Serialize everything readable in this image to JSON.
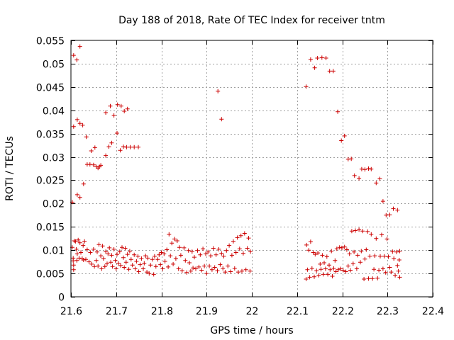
{
  "chart_data": {
    "type": "scatter",
    "title": "Day 188 of 2018, Rate Of TEC Index for receiver tntm",
    "xlabel": "GPS time / hours",
    "ylabel": "ROTI / TECUs",
    "xlim": [
      21.6,
      22.4
    ],
    "ylim": [
      0,
      0.055
    ],
    "x_ticks": [
      21.6,
      21.7,
      21.8,
      21.9,
      22.0,
      22.1,
      22.2,
      22.3,
      22.4
    ],
    "x_tick_labels": [
      "21.6",
      "21.7",
      "21.8",
      "21.9",
      "22",
      "22.1",
      "22.2",
      "22.3",
      "22.4"
    ],
    "y_ticks": [
      0,
      0.005,
      0.01,
      0.015,
      0.02,
      0.025,
      0.03,
      0.035,
      0.04,
      0.045,
      0.05,
      0.055
    ],
    "y_tick_labels": [
      "0",
      "0.005",
      "0.01",
      "0.015",
      "0.02",
      "0.025",
      "0.03",
      "0.035",
      "0.04",
      "0.045",
      "0.05",
      "0.055"
    ],
    "grid": true,
    "marker": "+",
    "color": "#cc0000",
    "points": [
      [
        21.603,
        0.0203
      ],
      [
        21.606,
        0.0365
      ],
      [
        21.606,
        0.0518
      ],
      [
        21.613,
        0.0508
      ],
      [
        21.614,
        0.038
      ],
      [
        21.614,
        0.0219
      ],
      [
        21.62,
        0.0372
      ],
      [
        21.62,
        0.0213
      ],
      [
        21.62,
        0.0537
      ],
      [
        21.626,
        0.0368
      ],
      [
        21.628,
        0.0242
      ],
      [
        21.634,
        0.0343
      ],
      [
        21.636,
        0.0284
      ],
      [
        21.642,
        0.0284
      ],
      [
        21.645,
        0.0313
      ],
      [
        21.65,
        0.0283
      ],
      [
        21.653,
        0.032
      ],
      [
        21.656,
        0.0279
      ],
      [
        21.66,
        0.0276
      ],
      [
        21.663,
        0.0279
      ],
      [
        21.666,
        0.0282
      ],
      [
        21.677,
        0.0303
      ],
      [
        21.677,
        0.0395
      ],
      [
        21.684,
        0.0322
      ],
      [
        21.687,
        0.0409
      ],
      [
        21.69,
        0.033
      ],
      [
        21.695,
        0.0389
      ],
      [
        21.702,
        0.0351
      ],
      [
        21.703,
        0.0412
      ],
      [
        21.709,
        0.0314
      ],
      [
        21.711,
        0.0409
      ],
      [
        21.716,
        0.0322
      ],
      [
        21.718,
        0.0398
      ],
      [
        21.723,
        0.0321
      ],
      [
        21.725,
        0.0403
      ],
      [
        21.731,
        0.0321
      ],
      [
        21.74,
        0.0321
      ],
      [
        21.749,
        0.0321
      ],
      [
        21.925,
        0.0441
      ],
      [
        21.933,
        0.0381
      ],
      [
        22.12,
        0.0451
      ],
      [
        22.13,
        0.0509
      ],
      [
        22.139,
        0.0491
      ],
      [
        22.145,
        0.0512
      ],
      [
        22.155,
        0.0513
      ],
      [
        22.164,
        0.0512
      ],
      [
        22.172,
        0.0484
      ],
      [
        22.18,
        0.0484
      ],
      [
        22.19,
        0.0397
      ],
      [
        22.198,
        0.0335
      ],
      [
        22.205,
        0.0345
      ],
      [
        22.213,
        0.0295
      ],
      [
        22.22,
        0.0296
      ],
      [
        22.227,
        0.026
      ],
      [
        22.237,
        0.0254
      ],
      [
        22.243,
        0.0274
      ],
      [
        22.25,
        0.0273
      ],
      [
        22.258,
        0.0275
      ],
      [
        22.264,
        0.0274
      ],
      [
        22.275,
        0.0244
      ],
      [
        22.283,
        0.0253
      ],
      [
        22.29,
        0.0205
      ],
      [
        22.297,
        0.0175
      ],
      [
        22.305,
        0.0176
      ],
      [
        22.313,
        0.0189
      ],
      [
        22.322,
        0.0186
      ],
      [
        21.603,
        0.0106
      ],
      [
        21.605,
        0.0083
      ],
      [
        21.605,
        0.0077
      ],
      [
        21.606,
        0.0058
      ],
      [
        21.606,
        0.0068
      ],
      [
        21.607,
        0.012
      ],
      [
        21.61,
        0.0119
      ],
      [
        21.612,
        0.0102
      ],
      [
        21.613,
        0.0078
      ],
      [
        21.614,
        0.0092
      ],
      [
        21.616,
        0.0122
      ],
      [
        21.618,
        0.0083
      ],
      [
        21.62,
        0.0116
      ],
      [
        21.622,
        0.0095
      ],
      [
        21.625,
        0.0082
      ],
      [
        21.627,
        0.011
      ],
      [
        21.628,
        0.0079
      ],
      [
        21.63,
        0.0119
      ],
      [
        21.633,
        0.008
      ],
      [
        21.636,
        0.0101
      ],
      [
        21.64,
        0.0075
      ],
      [
        21.643,
        0.0095
      ],
      [
        21.646,
        0.007
      ],
      [
        21.65,
        0.0102
      ],
      [
        21.652,
        0.0065
      ],
      [
        21.656,
        0.0078
      ],
      [
        21.658,
        0.0096
      ],
      [
        21.66,
        0.0066
      ],
      [
        21.662,
        0.0112
      ],
      [
        21.666,
        0.0088
      ],
      [
        21.668,
        0.006
      ],
      [
        21.67,
        0.0109
      ],
      [
        21.672,
        0.0082
      ],
      [
        21.675,
        0.0065
      ],
      [
        21.677,
        0.0097
      ],
      [
        21.68,
        0.0071
      ],
      [
        21.682,
        0.0092
      ],
      [
        21.685,
        0.0105
      ],
      [
        21.688,
        0.0074
      ],
      [
        21.69,
        0.0089
      ],
      [
        21.692,
        0.0065
      ],
      [
        21.695,
        0.0102
      ],
      [
        21.698,
        0.0078
      ],
      [
        21.7,
        0.006
      ],
      [
        21.702,
        0.0091
      ],
      [
        21.705,
        0.0072
      ],
      [
        21.708,
        0.0097
      ],
      [
        21.71,
        0.0067
      ],
      [
        21.713,
        0.0106
      ],
      [
        21.716,
        0.0084
      ],
      [
        21.718,
        0.0063
      ],
      [
        21.72,
        0.0104
      ],
      [
        21.722,
        0.0074
      ],
      [
        21.725,
        0.0091
      ],
      [
        21.728,
        0.0059
      ],
      [
        21.73,
        0.0098
      ],
      [
        21.733,
        0.008
      ],
      [
        21.736,
        0.0068
      ],
      [
        21.74,
        0.009
      ],
      [
        21.742,
        0.006
      ],
      [
        21.745,
        0.0076
      ],
      [
        21.748,
        0.0087
      ],
      [
        21.75,
        0.0054
      ],
      [
        21.753,
        0.0069
      ],
      [
        21.756,
        0.0082
      ],
      [
        21.76,
        0.006
      ],
      [
        21.762,
        0.0072
      ],
      [
        21.765,
        0.0088
      ],
      [
        21.768,
        0.0053
      ],
      [
        21.77,
        0.0083
      ],
      [
        21.773,
        0.005
      ],
      [
        21.776,
        0.0068
      ],
      [
        21.78,
        0.008
      ],
      [
        21.783,
        0.0048
      ],
      [
        21.785,
        0.0087
      ],
      [
        21.788,
        0.0065
      ],
      [
        21.792,
        0.008
      ],
      [
        21.795,
        0.009
      ],
      [
        21.798,
        0.0069
      ],
      [
        21.8,
        0.0095
      ],
      [
        21.803,
        0.006
      ],
      [
        21.806,
        0.0092
      ],
      [
        21.808,
        0.0076
      ],
      [
        21.812,
        0.0101
      ],
      [
        21.815,
        0.0064
      ],
      [
        21.817,
        0.0134
      ],
      [
        21.82,
        0.0088
      ],
      [
        21.823,
        0.0115
      ],
      [
        21.826,
        0.007
      ],
      [
        21.829,
        0.0124
      ],
      [
        21.832,
        0.0082
      ],
      [
        21.835,
        0.012
      ],
      [
        21.838,
        0.006
      ],
      [
        21.84,
        0.0106
      ],
      [
        21.843,
        0.0089
      ],
      [
        21.846,
        0.0056
      ],
      [
        21.85,
        0.0105
      ],
      [
        21.853,
        0.0078
      ],
      [
        21.856,
        0.0052
      ],
      [
        21.86,
        0.0099
      ],
      [
        21.862,
        0.0073
      ],
      [
        21.865,
        0.0055
      ],
      [
        21.868,
        0.0097
      ],
      [
        21.87,
        0.0062
      ],
      [
        21.873,
        0.0085
      ],
      [
        21.876,
        0.006
      ],
      [
        21.88,
        0.0099
      ],
      [
        21.883,
        0.0064
      ],
      [
        21.886,
        0.009
      ],
      [
        21.889,
        0.0057
      ],
      [
        21.892,
        0.0103
      ],
      [
        21.895,
        0.0066
      ],
      [
        21.898,
        0.0092
      ],
      [
        21.9,
        0.005
      ],
      [
        21.903,
        0.0096
      ],
      [
        21.906,
        0.0066
      ],
      [
        21.909,
        0.0088
      ],
      [
        21.912,
        0.0058
      ],
      [
        21.915,
        0.0104
      ],
      [
        21.918,
        0.0063
      ],
      [
        21.921,
        0.009
      ],
      [
        21.924,
        0.0056
      ],
      [
        21.927,
        0.0102
      ],
      [
        21.93,
        0.0069
      ],
      [
        21.933,
        0.0093
      ],
      [
        21.936,
        0.0061
      ],
      [
        21.938,
        0.0087
      ],
      [
        21.941,
        0.0053
      ],
      [
        21.944,
        0.0099
      ],
      [
        21.947,
        0.0066
      ],
      [
        21.95,
        0.011
      ],
      [
        21.953,
        0.0054
      ],
      [
        21.956,
        0.0089
      ],
      [
        21.959,
        0.0119
      ],
      [
        21.962,
        0.0061
      ],
      [
        21.965,
        0.0095
      ],
      [
        21.968,
        0.0127
      ],
      [
        21.97,
        0.0053
      ],
      [
        21.973,
        0.0103
      ],
      [
        21.976,
        0.0131
      ],
      [
        21.978,
        0.0055
      ],
      [
        21.981,
        0.0093
      ],
      [
        21.984,
        0.0136
      ],
      [
        21.987,
        0.0058
      ],
      [
        21.99,
        0.0104
      ],
      [
        21.993,
        0.0126
      ],
      [
        21.996,
        0.0055
      ],
      [
        21.997,
        0.0097
      ],
      [
        22.12,
        0.0038
      ],
      [
        22.121,
        0.0111
      ],
      [
        22.123,
        0.0058
      ],
      [
        22.126,
        0.01
      ],
      [
        22.128,
        0.0042
      ],
      [
        22.13,
        0.0118
      ],
      [
        22.133,
        0.0061
      ],
      [
        22.136,
        0.0095
      ],
      [
        22.138,
        0.0043
      ],
      [
        22.14,
        0.0091
      ],
      [
        22.143,
        0.0056
      ],
      [
        22.146,
        0.0094
      ],
      [
        22.148,
        0.0046
      ],
      [
        22.151,
        0.007
      ],
      [
        22.153,
        0.0059
      ],
      [
        22.156,
        0.0089
      ],
      [
        22.158,
        0.0048
      ],
      [
        22.16,
        0.0073
      ],
      [
        22.163,
        0.006
      ],
      [
        22.166,
        0.0086
      ],
      [
        22.168,
        0.0048
      ],
      [
        22.171,
        0.0068
      ],
      [
        22.173,
        0.0058
      ],
      [
        22.176,
        0.0098
      ],
      [
        22.178,
        0.0044
      ],
      [
        22.181,
        0.0061
      ],
      [
        22.184,
        0.0078
      ],
      [
        22.186,
        0.0054
      ],
      [
        22.188,
        0.0103
      ],
      [
        22.191,
        0.0058
      ],
      [
        22.194,
        0.0106
      ],
      [
        22.196,
        0.006
      ],
      [
        22.199,
        0.0105
      ],
      [
        22.202,
        0.0057
      ],
      [
        22.205,
        0.0107
      ],
      [
        22.208,
        0.0054
      ],
      [
        22.21,
        0.0101
      ],
      [
        22.213,
        0.0066
      ],
      [
        22.216,
        0.0092
      ],
      [
        22.218,
        0.0057
      ],
      [
        22.221,
        0.0141
      ],
      [
        22.224,
        0.0071
      ],
      [
        22.226,
        0.0096
      ],
      [
        22.229,
        0.0142
      ],
      [
        22.232,
        0.006
      ],
      [
        22.234,
        0.0089
      ],
      [
        22.237,
        0.0144
      ],
      [
        22.24,
        0.0074
      ],
      [
        22.242,
        0.0098
      ],
      [
        22.245,
        0.0141
      ],
      [
        22.248,
        0.0038
      ],
      [
        22.25,
        0.0081
      ],
      [
        22.253,
        0.0101
      ],
      [
        22.256,
        0.014
      ],
      [
        22.258,
        0.0039
      ],
      [
        22.261,
        0.0087
      ],
      [
        22.264,
        0.0134
      ],
      [
        22.267,
        0.0039
      ],
      [
        22.27,
        0.0059
      ],
      [
        22.272,
        0.0088
      ],
      [
        22.275,
        0.0125
      ],
      [
        22.278,
        0.004
      ],
      [
        22.281,
        0.0057
      ],
      [
        22.284,
        0.0087
      ],
      [
        22.287,
        0.0133
      ],
      [
        22.29,
        0.006
      ],
      [
        22.293,
        0.0087
      ],
      [
        22.296,
        0.0052
      ],
      [
        22.299,
        0.0124
      ],
      [
        22.302,
        0.0086
      ],
      [
        22.305,
        0.0063
      ],
      [
        22.308,
        0.0053
      ],
      [
        22.311,
        0.0097
      ],
      [
        22.314,
        0.0082
      ],
      [
        22.317,
        0.0046
      ],
      [
        22.32,
        0.0096
      ],
      [
        22.322,
        0.0067
      ],
      [
        22.324,
        0.0055
      ],
      [
        22.326,
        0.0079
      ],
      [
        22.327,
        0.0098
      ],
      [
        22.327,
        0.0042
      ]
    ]
  }
}
